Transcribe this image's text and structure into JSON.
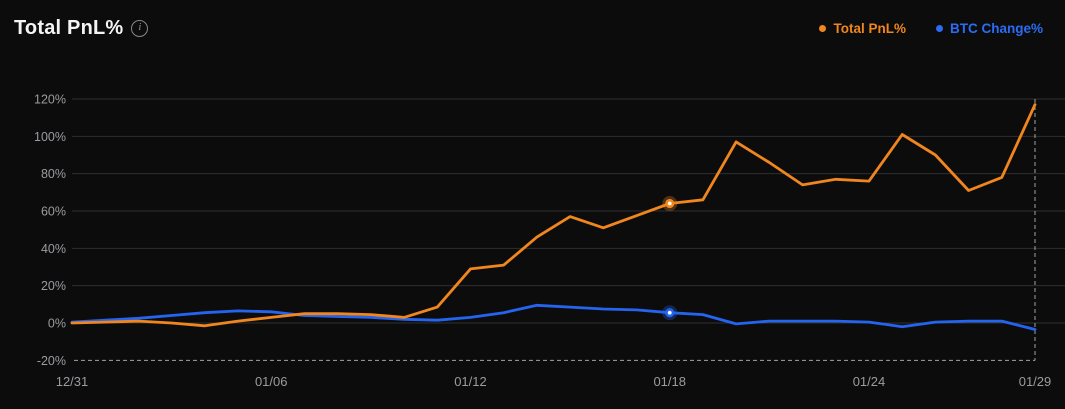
{
  "header": {
    "title": "Total PnL%"
  },
  "legend": [
    {
      "label": "Total PnL%",
      "color": "#f0861d"
    },
    {
      "label": "BTC Change%",
      "color": "#2b6cf5"
    }
  ],
  "colors": {
    "background": "#0c0c0d",
    "gridline": "#2f2f31",
    "dashed_boundary": "#bdbdbd",
    "axis_text": "#9c9ca0",
    "title_text": "#f4f4f5",
    "total_pnl_line": "#f0861d",
    "btc_change_line": "#2464ef",
    "marker_center": "#ffffff"
  },
  "chart_data": {
    "type": "line",
    "title": "Total PnL%",
    "xlabel": "",
    "ylabel": "",
    "ylim": [
      -20,
      120
    ],
    "y_ticks": [
      120,
      100,
      80,
      60,
      40,
      20,
      0,
      -20
    ],
    "y_tick_suffix": "%",
    "grid": "horizontal",
    "legend_position": "top-right",
    "x": [
      "12/31",
      "01/01",
      "01/02",
      "01/03",
      "01/04",
      "01/05",
      "01/06",
      "01/07",
      "01/08",
      "01/09",
      "01/10",
      "01/11",
      "01/12",
      "01/13",
      "01/14",
      "01/15",
      "01/16",
      "01/17",
      "01/18",
      "01/19",
      "01/20",
      "01/21",
      "01/22",
      "01/23",
      "01/24",
      "01/25",
      "01/26",
      "01/27",
      "01/28",
      "01/29"
    ],
    "x_tick_labels": [
      "12/31",
      "01/06",
      "01/12",
      "01/18",
      "01/24",
      "01/29"
    ],
    "x_tick_indices": [
      0,
      6,
      12,
      18,
      24,
      29
    ],
    "series": [
      {
        "name": "Total PnL%",
        "color": "#f0861d",
        "marker_index": 18,
        "values": [
          0,
          0.5,
          1,
          0,
          -1.5,
          1,
          3,
          5,
          5,
          4.5,
          3,
          8.5,
          29,
          31,
          46,
          57,
          51,
          57.5,
          64,
          66,
          97,
          86,
          74,
          77,
          76,
          101,
          90,
          71,
          78,
          117
        ]
      },
      {
        "name": "BTC Change%",
        "color": "#2464ef",
        "marker_index": 18,
        "values": [
          0.5,
          1.5,
          2.5,
          4,
          5.5,
          6.5,
          6,
          4,
          3.5,
          3,
          2,
          1.5,
          3,
          5.5,
          9.5,
          8.5,
          7.5,
          7,
          5.5,
          4.5,
          -0.5,
          1,
          1,
          1,
          0.5,
          -2,
          0.5,
          1,
          1,
          -3.5
        ]
      }
    ]
  }
}
